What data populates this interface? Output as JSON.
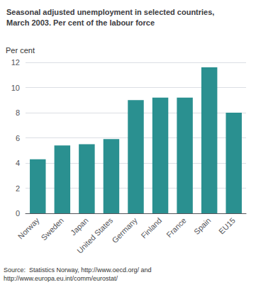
{
  "chart_data": {
    "type": "bar",
    "title": "Seasonal adjusted unemployment in selected countries,\nMarch 2003. Per cent of the labour force",
    "ylabel": "Per cent",
    "annotations": [
      "Source:  Statistics Norway, http://www.oecd.org/ and\nhttp://www.europa.eu.int/comm/eurostat/"
    ],
    "categories": [
      "Norway",
      "Sweden",
      "Japan",
      "United States",
      "Germany",
      "Finland",
      "France",
      "Spain",
      "EU15"
    ],
    "values": [
      4.3,
      5.4,
      5.5,
      5.9,
      9.0,
      9.2,
      9.2,
      11.6,
      8.0
    ],
    "color": "#2a9090",
    "ylim": [
      0,
      12
    ],
    "yticks": [
      0,
      2,
      4,
      6,
      8,
      10,
      12
    ],
    "grid": true
  }
}
